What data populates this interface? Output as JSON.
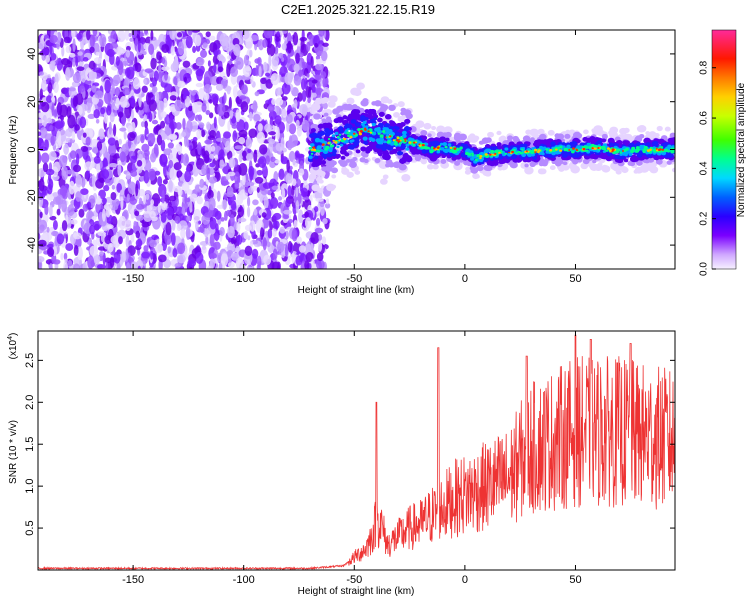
{
  "title": "C2E1.2025.321.22.15.R19",
  "chart_data": [
    {
      "type": "heatmap",
      "xlabel": "Height of straight line (km)",
      "ylabel": "Frequency (Hz)",
      "xlim": [
        -193,
        95
      ],
      "ylim": [
        -50,
        50
      ],
      "xticks": [
        -150,
        -100,
        -50,
        0,
        50
      ],
      "yticks": [
        -40,
        -20,
        0,
        20,
        40
      ],
      "colorbar": {
        "label": "Normalized spectral amplitude",
        "range": [
          0.0,
          0.95
        ],
        "ticks": [
          "0.0",
          "0.2",
          "0.4",
          "0.6",
          "0.8"
        ],
        "tick_values": [
          0.0,
          0.2,
          0.4,
          0.6,
          0.8
        ]
      },
      "noise_region_end_km": -65,
      "ridge": {
        "x": [
          -70,
          -60,
          -55,
          -50,
          -45,
          -40,
          -35,
          -30,
          -25,
          -20,
          -15,
          -10,
          -5,
          0,
          5,
          10,
          20,
          30,
          40,
          50,
          60,
          70,
          80,
          95
        ],
        "freq": [
          0,
          3,
          5,
          7,
          8,
          7,
          5,
          4,
          3,
          2,
          0,
          1,
          0,
          0,
          -4,
          -2,
          -1,
          -1,
          0,
          0,
          1,
          -1,
          0,
          0
        ]
      }
    },
    {
      "type": "line",
      "xlabel": "Height of straight line (km)",
      "ylabel": "SNR (10 * v/v)",
      "yscale_label": "(x10",
      "yscale_exp": "4",
      "yscale_close": ")",
      "xlim": [
        -193,
        95
      ],
      "ylim": [
        0,
        2.85
      ],
      "xticks": [
        -150,
        -100,
        -50,
        0,
        50
      ],
      "yticks": [
        0.5,
        1.0,
        1.5,
        2.0,
        2.5
      ],
      "ytick_labels": [
        "0.5",
        "1.0",
        "1.5",
        "2.0",
        "2.5"
      ],
      "color": "#ee3333",
      "envelope": {
        "x": [
          -193,
          -70,
          -55,
          -50,
          -45,
          -42,
          -40,
          -38,
          -35,
          -30,
          -25,
          -20,
          -15,
          -10,
          -5,
          0,
          10,
          20,
          25,
          30,
          40,
          50,
          60,
          70,
          80,
          95
        ],
        "y": [
          0.02,
          0.02,
          0.05,
          0.15,
          0.25,
          0.4,
          0.6,
          0.55,
          0.3,
          0.4,
          0.5,
          0.55,
          0.65,
          0.75,
          0.85,
          0.9,
          1.0,
          1.1,
          1.3,
          1.45,
          1.55,
          1.65,
          1.65,
          1.65,
          1.6,
          1.55
        ]
      },
      "spikes": [
        {
          "x": -40,
          "y": 2.0
        },
        {
          "x": -12,
          "y": 2.65
        },
        {
          "x": 28,
          "y": 2.55
        },
        {
          "x": 50,
          "y": 2.8
        },
        {
          "x": 57,
          "y": 2.75
        },
        {
          "x": 75,
          "y": 2.7
        }
      ]
    }
  ]
}
